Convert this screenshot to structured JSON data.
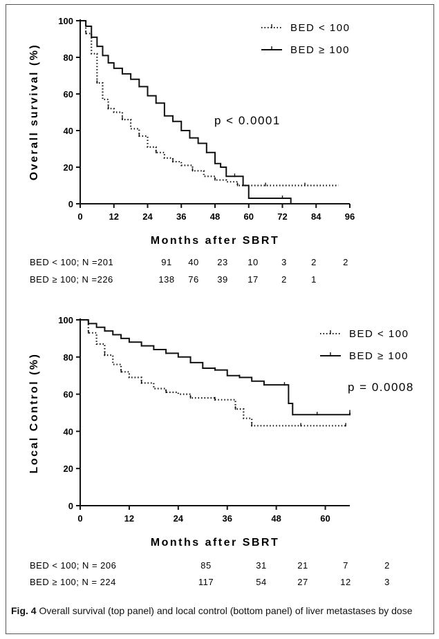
{
  "figure": {
    "caption_label": "Fig. 4",
    "caption_text": "Overall survival (top panel) and local control (bottom panel) of liver metastases by dose"
  },
  "chart_data": [
    {
      "type": "line",
      "panel": "top",
      "xlabel": "Months after SBRT",
      "ylabel": "Overall survival (%)",
      "xlim": [
        0,
        96
      ],
      "ylim": [
        0,
        100
      ],
      "xticks": [
        0,
        12,
        24,
        36,
        48,
        60,
        72,
        84,
        96
      ],
      "yticks": [
        0,
        20,
        40,
        60,
        80,
        100
      ],
      "grid": false,
      "legend_position": "top-right",
      "annotation": "p < 0.0001",
      "series": [
        {
          "name": "BED < 100",
          "style": "dotted",
          "color": "#111111",
          "x": [
            0,
            2,
            4,
            6,
            8,
            10,
            12,
            15,
            18,
            21,
            24,
            27,
            30,
            33,
            36,
            40,
            44,
            48,
            52,
            56,
            60,
            66,
            72,
            80,
            92
          ],
          "y": [
            100,
            93,
            82,
            66,
            57,
            52,
            50,
            46,
            41,
            37,
            31,
            28,
            25,
            23,
            21,
            18,
            15,
            13,
            12,
            10,
            10,
            10,
            10,
            10,
            10
          ]
        },
        {
          "name": "BED ≥ 100",
          "style": "solid",
          "color": "#111111",
          "x": [
            0,
            2,
            4,
            6,
            8,
            10,
            12,
            15,
            18,
            21,
            24,
            27,
            30,
            33,
            36,
            39,
            42,
            45,
            48,
            50,
            52,
            55,
            58,
            60,
            66,
            72,
            75
          ],
          "y": [
            100,
            97,
            91,
            86,
            81,
            77,
            74,
            71,
            68,
            64,
            59,
            55,
            48,
            45,
            40,
            36,
            33,
            28,
            22,
            20,
            15,
            15,
            10,
            3,
            3,
            3,
            0
          ]
        }
      ],
      "risk_table": {
        "rows": [
          {
            "label": "BED < 100; N =201",
            "values": [
              "91",
              "40",
              "23",
              "10",
              "3",
              "2",
              "2"
            ]
          },
          {
            "label": "BED ≥ 100; N =226",
            "values": [
              "138",
              "76",
              "39",
              "17",
              "2",
              "1"
            ]
          }
        ]
      }
    },
    {
      "type": "line",
      "panel": "bottom",
      "xlabel": "Months after SBRT",
      "ylabel": "Local Control (%)",
      "xlim": [
        0,
        66
      ],
      "ylim": [
        0,
        100
      ],
      "xticks": [
        0,
        12,
        24,
        36,
        48,
        60
      ],
      "yticks": [
        0,
        20,
        40,
        60,
        80,
        100
      ],
      "grid": false,
      "legend_position": "top-right",
      "annotation": "p = 0.0008",
      "series": [
        {
          "name": "BED < 100",
          "style": "dotted",
          "color": "#111111",
          "x": [
            0,
            2,
            4,
            6,
            8,
            10,
            12,
            15,
            18,
            21,
            24,
            27,
            30,
            33,
            36,
            38,
            40,
            42,
            48,
            54,
            60,
            65
          ],
          "y": [
            100,
            93,
            87,
            81,
            76,
            72,
            69,
            66,
            63,
            61,
            60,
            58,
            58,
            57,
            57,
            52,
            47,
            43,
            43,
            43,
            43,
            43
          ]
        },
        {
          "name": "BED ≥ 100",
          "style": "solid",
          "color": "#111111",
          "x": [
            0,
            2,
            4,
            6,
            8,
            10,
            12,
            15,
            18,
            21,
            24,
            27,
            30,
            33,
            36,
            39,
            42,
            45,
            48,
            50,
            51,
            52,
            55,
            58,
            62,
            66
          ],
          "y": [
            100,
            98,
            96,
            94,
            92,
            90,
            88,
            86,
            84,
            82,
            80,
            77,
            74,
            73,
            70,
            69,
            67,
            65,
            65,
            65,
            55,
            49,
            49,
            49,
            49,
            50
          ]
        }
      ],
      "risk_table": {
        "rows": [
          {
            "label": "BED < 100; N = 206",
            "values": [
              "85",
              "31",
              "21",
              "7",
              "2"
            ]
          },
          {
            "label": "BED ≥ 100; N = 224",
            "values": [
              "117",
              "54",
              "27",
              "12",
              "3"
            ]
          }
        ]
      }
    }
  ]
}
